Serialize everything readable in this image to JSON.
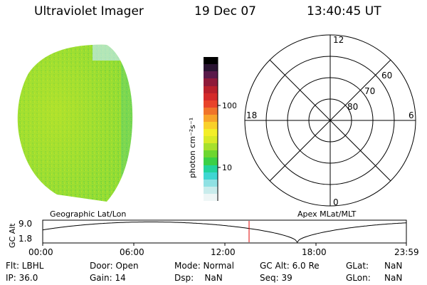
{
  "header": {
    "title": "Ultraviolet Imager",
    "date": "19 Dec 07",
    "time": "13:40:45 UT"
  },
  "image": {
    "description": "earth-disk",
    "dominant_color": "#8fdc2f"
  },
  "colorbar": {
    "unit_label": "photon cm⁻²s⁻¹",
    "ticks": [
      "100",
      "10"
    ],
    "colors": [
      "#eef6f6",
      "#c9ecec",
      "#8fe1e3",
      "#3fd6d2",
      "#22d39c",
      "#3ad046",
      "#6dd630",
      "#a6e02c",
      "#d8ea27",
      "#f3ee29",
      "#f9d02a",
      "#f8a42a",
      "#f0742a",
      "#e8432a",
      "#d42a2a",
      "#b8202c",
      "#8e1a3a",
      "#5a1a4a",
      "#2a1432",
      "#000000"
    ]
  },
  "polar": {
    "lat_labels": [
      "60",
      "70",
      "80"
    ],
    "mlt_labels": [
      "12",
      "18",
      "6",
      "0"
    ]
  },
  "timeline": {
    "ylabel": "GC Alt",
    "y_ticks": [
      "9.0",
      "1.8"
    ],
    "left_label": "Geographic Lat/Lon",
    "right_label": "Apex MLat/MLT",
    "x_ticks": [
      "00:00",
      "06:00",
      "12:00",
      "18:00",
      "23:59"
    ],
    "marker_color": "#e00000"
  },
  "info": {
    "col1": [
      "Flt: LBHL",
      "IP: 36.0"
    ],
    "col2": [
      "Door: Open",
      "Gain: 14"
    ],
    "col3": [
      "Mode: Normal",
      "Dsp:    NaN"
    ],
    "col4": [
      "GC Alt: 6.0 Re",
      "Seq: 39"
    ],
    "col5": [
      "GLat:",
      "GLon:"
    ],
    "col6": [
      "NaN",
      "NaN"
    ]
  }
}
